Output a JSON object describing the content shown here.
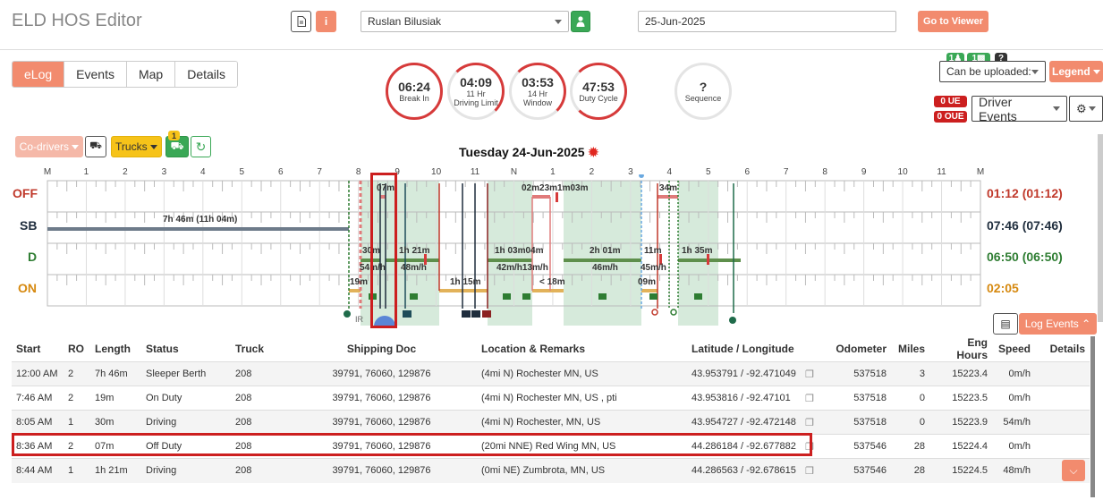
{
  "app": {
    "title": "ELD HOS Editor"
  },
  "header": {
    "driver": "Ruslan Bilusiak",
    "date": "25-Jun-2025",
    "go_viewer": "Go to Viewer",
    "info_glyph": "i"
  },
  "tabs": [
    {
      "label": "eLog",
      "active": true
    },
    {
      "label": "Events"
    },
    {
      "label": "Map"
    },
    {
      "label": "Details"
    }
  ],
  "gauges": [
    {
      "value": "06:24",
      "line1": "Break In",
      "line2": ""
    },
    {
      "value": "04:09",
      "line1": "11 Hr",
      "line2": "Driving Limit"
    },
    {
      "value": "03:53",
      "line1": "14 Hr",
      "line2": "Window"
    },
    {
      "value": "47:53",
      "line1": "Duty Cycle",
      "line2": ""
    },
    {
      "value": "?",
      "line1": "Sequence",
      "line2": ""
    }
  ],
  "right_controls": {
    "badge_a": "1",
    "badge_b": "1",
    "badge_q": "?",
    "upload_select": "Can be uploaded:",
    "legend": "Legend",
    "ue": "0 UE",
    "oue": "0 OUE",
    "driver_events": "Driver Events"
  },
  "toolbar": {
    "codrivers": "Co-drivers",
    "trucks": "Trucks",
    "notif_badge": "1"
  },
  "chart": {
    "date_title": "Tuesday 24-Jun-2025",
    "hours": [
      "M",
      "1",
      "2",
      "3",
      "4",
      "5",
      "6",
      "7",
      "8",
      "9",
      "10",
      "11",
      "N",
      "1",
      "2",
      "3",
      "4",
      "5",
      "6",
      "7",
      "8",
      "9",
      "10",
      "11",
      "M"
    ],
    "statuses": [
      {
        "label": "OFF",
        "total": "01:12 (01:12)",
        "color": "#c0392b"
      },
      {
        "label": "SB",
        "total": "07:46 (07:46)",
        "color": "#1f2d3d"
      },
      {
        "label": "D",
        "total": "06:50 (06:50)",
        "color": "#2e7d32"
      },
      {
        "label": "ON",
        "total": "02:05",
        "color": "#d68910"
      }
    ],
    "labels": {
      "sb_duration": "7h 46m (11h 04m)",
      "off_07m": "07m",
      "off_cluster": "02m23m1m03m",
      "off_34m": "34m",
      "d_30m": "30m",
      "d_1h21m": "1h 21m",
      "d_1h03m04m": "1h 03m04m",
      "d_2h01m": "2h 01m",
      "d_11m": "11m",
      "d_1h35m": "1h 35m",
      "sp_54": "54m/h",
      "sp_48": "48m/h",
      "sp_42": "42m/h13m/h",
      "sp_46": "46m/h",
      "sp_45": "45m/h",
      "on_19m": "19m",
      "on_1h15m": "1h 15m",
      "on_lt18": "< 18m",
      "on_09m": "09m",
      "ir": "IR"
    }
  },
  "log_events_btn": "Log Events",
  "table": {
    "headers": [
      "Start",
      "RO",
      "Length",
      "Status",
      "Truck",
      "Shipping Doc",
      "Location & Remarks",
      "Latitude / Longitude",
      "",
      "Odometer",
      "Miles",
      "Eng Hours",
      "Speed",
      "Details"
    ],
    "rows": [
      {
        "start": "12:00 AM",
        "ro": "2",
        "length": "7h 46m",
        "status": "Sleeper Berth",
        "truck": "208",
        "doc": "39791, 76060, 129876",
        "loc": "(4mi N) Rochester MN, US",
        "latlon": "43.953791 / -92.471049",
        "odo": "537518",
        "miles": "3",
        "eng": "15223.4",
        "speed": "0m/h"
      },
      {
        "start": "7:46 AM",
        "ro": "2",
        "length": "19m",
        "status": "On Duty",
        "truck": "208",
        "doc": "39791, 76060, 129876",
        "loc": "(4mi N) Rochester MN, US , pti",
        "latlon": "43.953816 / -92.47101",
        "odo": "537518",
        "miles": "0",
        "eng": "15223.5",
        "speed": "0m/h"
      },
      {
        "start": "8:05 AM",
        "ro": "1",
        "length": "30m",
        "status": "Driving",
        "truck": "208",
        "doc": "39791, 76060, 129876",
        "loc": "(4mi N) Rochester, MN, US",
        "latlon": "43.954727 / -92.472148",
        "odo": "537518",
        "miles": "0",
        "eng": "15223.9",
        "speed": "54m/h"
      },
      {
        "start": "8:36 AM",
        "ro": "2",
        "length": "07m",
        "status": "Off Duty",
        "truck": "208",
        "doc": "39791, 76060, 129876",
        "loc": "(20mi NNE) Red Wing MN, US",
        "latlon": "44.286184 / -92.677882",
        "odo": "537546",
        "miles": "28",
        "eng": "15224.4",
        "speed": "0m/h"
      },
      {
        "start": "8:44 AM",
        "ro": "1",
        "length": "1h 21m",
        "status": "Driving",
        "truck": "208",
        "doc": "39791, 76060, 129876",
        "loc": "(0mi NE) Zumbrota, MN, US",
        "latlon": "44.286563 / -92.678615",
        "odo": "537546",
        "miles": "28",
        "eng": "15224.5",
        "speed": "48m/h"
      }
    ]
  }
}
